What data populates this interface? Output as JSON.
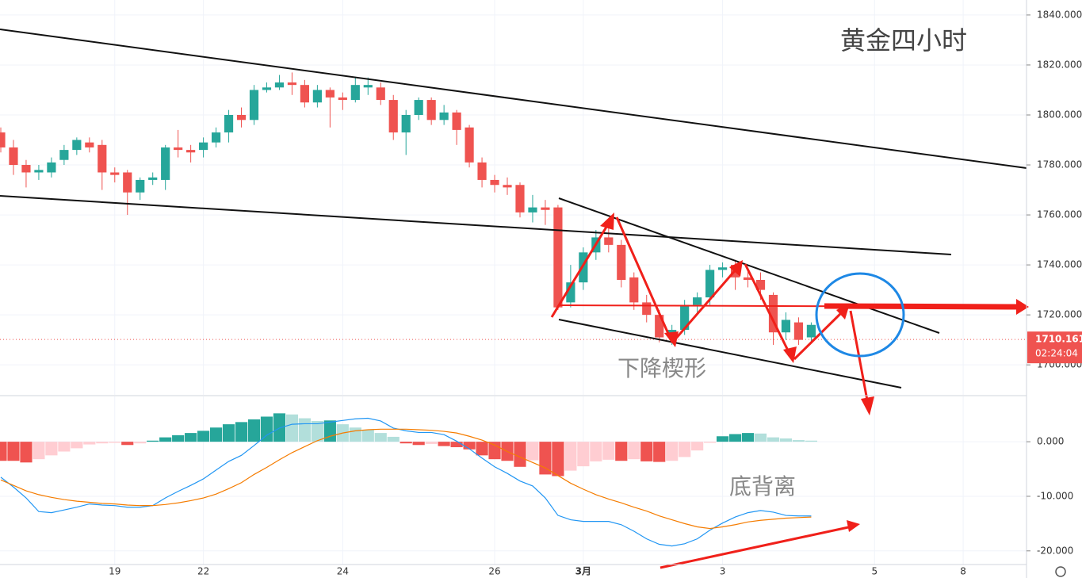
{
  "chart_data": [
    {
      "type": "candlestick",
      "title": "黄金四小时",
      "annotations": [
        "下降楔形"
      ],
      "x": [
        0,
        1,
        2,
        3,
        4,
        5,
        6,
        7,
        8,
        9,
        10,
        11,
        12,
        13,
        14,
        15,
        16,
        17,
        18,
        19,
        20,
        21,
        22,
        23,
        24,
        25,
        26,
        27,
        28,
        29,
        30,
        31,
        32,
        33,
        34,
        35,
        36,
        37,
        38,
        39,
        40,
        41,
        42,
        43,
        44,
        45,
        46,
        47,
        48,
        49,
        50,
        51,
        52,
        53,
        54,
        55,
        56,
        57,
        58,
        59,
        60,
        61,
        62,
        63,
        64
      ],
      "open": [
        1793,
        1787,
        1780,
        1777,
        1777,
        1782,
        1786,
        1789,
        1788,
        1777,
        1777,
        1769,
        1774,
        1774,
        1787,
        1786,
        1786,
        1789,
        1793,
        1800,
        1798,
        1810,
        1811,
        1813,
        1812,
        1805,
        1810,
        1807,
        1806,
        1811,
        1811,
        1806,
        1793,
        1800,
        1806,
        1798,
        1801,
        1795,
        1781,
        1774,
        1772,
        1772,
        1761,
        1763,
        1763,
        1725,
        1733,
        1745,
        1751,
        1748,
        1735,
        1725,
        1720,
        1711,
        1714,
        1724,
        1727,
        1738,
        1740,
        1735,
        1734,
        1728,
        1713,
        1717,
        1711
      ],
      "high": [
        1795,
        1790,
        1782,
        1780,
        1783,
        1788,
        1791,
        1791,
        1790,
        1779,
        1778,
        1775,
        1777,
        1788,
        1794,
        1788,
        1791,
        1795,
        1802,
        1803,
        1812,
        1813,
        1816,
        1817,
        1814,
        1812,
        1811,
        1809,
        1815,
        1815,
        1813,
        1808,
        1802,
        1807,
        1807,
        1804,
        1802,
        1796,
        1783,
        1776,
        1775,
        1773,
        1768,
        1766,
        1764,
        1740,
        1747,
        1754,
        1755,
        1750,
        1737,
        1728,
        1722,
        1716,
        1726,
        1729,
        1740,
        1741,
        1742,
        1738,
        1737,
        1729,
        1721,
        1719,
        1717
      ],
      "low": [
        1785,
        1776,
        1771,
        1774,
        1775,
        1780,
        1784,
        1785,
        1770,
        1773,
        1760,
        1766,
        1772,
        1770,
        1783,
        1781,
        1783,
        1787,
        1789,
        1795,
        1796,
        1809,
        1810,
        1808,
        1803,
        1803,
        1795,
        1802,
        1805,
        1808,
        1804,
        1790,
        1784,
        1798,
        1796,
        1796,
        1788,
        1779,
        1771,
        1769,
        1768,
        1759,
        1757,
        1756,
        1722,
        1723,
        1730,
        1742,
        1745,
        1731,
        1722,
        1717,
        1709,
        1708,
        1712,
        1721,
        1724,
        1735,
        1730,
        1731,
        1726,
        1708,
        1710,
        1708,
        1709
      ],
      "close": [
        1787,
        1780,
        1777,
        1778,
        1781,
        1786,
        1790,
        1787,
        1777,
        1776,
        1769,
        1774,
        1775,
        1787,
        1786,
        1785,
        1789,
        1793,
        1800,
        1798,
        1810,
        1811,
        1813,
        1812,
        1805,
        1810,
        1807,
        1806,
        1812,
        1812,
        1806,
        1793,
        1800,
        1806,
        1798,
        1801,
        1794,
        1781,
        1774,
        1772,
        1771,
        1761,
        1763,
        1762,
        1723,
        1733,
        1745,
        1751,
        1748,
        1734,
        1725,
        1720,
        1711,
        1714,
        1724,
        1727,
        1738,
        1739,
        1735,
        1734,
        1730,
        1713,
        1718,
        1710,
        1716
      ],
      "up_color": "#26a69a",
      "down_color": "#ef5350",
      "xlim": [
        0,
        81
      ],
      "xticks": [
        {
          "value": 9,
          "label": "19"
        },
        {
          "value": 16,
          "label": "22"
        },
        {
          "value": 27,
          "label": "24"
        },
        {
          "value": 39,
          "label": "26"
        },
        {
          "value": 46,
          "label": "3月"
        },
        {
          "value": 57,
          "label": "3"
        },
        {
          "value": 69,
          "label": "5"
        },
        {
          "value": 76,
          "label": "8"
        }
      ],
      "ylim": [
        1688,
        1846
      ],
      "yticks": [
        {
          "value": 1700,
          "label": "1700.000"
        },
        {
          "value": 1720,
          "label": "1720.000"
        },
        {
          "value": 1740,
          "label": "1740.000"
        },
        {
          "value": 1760,
          "label": "1760.000"
        },
        {
          "value": 1780,
          "label": "1780.000"
        },
        {
          "value": 1800,
          "label": "1800.000"
        },
        {
          "value": 1820,
          "label": "1820.000"
        },
        {
          "value": 1840,
          "label": "1840.000"
        }
      ],
      "last_price": 1710.161,
      "countdown": "02:24:04",
      "grid": true
    },
    {
      "type": "macd",
      "annotations": [
        "底背离"
      ],
      "histogram": [
        -3.5,
        -3.5,
        -3.8,
        -3.2,
        -2.5,
        -1.8,
        -1.2,
        -0.5,
        -0.3,
        -0.2,
        -0.6,
        -0.3,
        0.2,
        0.8,
        1.2,
        1.6,
        2.0,
        2.6,
        3.2,
        3.6,
        4.1,
        4.6,
        5.2,
        5.0,
        4.3,
        3.8,
        3.9,
        3.2,
        2.6,
        2.2,
        1.6,
        0.9,
        -0.3,
        -0.6,
        -0.4,
        -0.8,
        -1.0,
        -1.4,
        -2.5,
        -3.2,
        -3.5,
        -4.6,
        -3.4,
        -6.0,
        -6.3,
        -5.3,
        -4.5,
        -3.6,
        -3.3,
        -3.5,
        -3.2,
        -3.6,
        -3.7,
        -3.5,
        -2.8,
        -1.6,
        -0.2,
        1.0,
        1.4,
        1.6,
        1.5,
        0.8,
        0.6,
        0.3,
        0.2
      ],
      "histogram_colors": {
        "up_strong": "#26a69a",
        "up_weak": "#b2dfdb",
        "down_strong": "#ef5350",
        "down_weak": "#ffcdd2"
      },
      "series": [
        {
          "color": "#2196f3",
          "values": [
            -6.5,
            -8.3,
            -10.3,
            -12.8,
            -13.0,
            -12.5,
            -12.0,
            -11.4,
            -11.6,
            -11.7,
            -12.0,
            -12.0,
            -11.7,
            -10.3,
            -9.1,
            -8.0,
            -6.8,
            -5.2,
            -3.6,
            -2.5,
            -0.7,
            1.2,
            2.5,
            3.2,
            3.3,
            3.3,
            3.6,
            3.9,
            4.2,
            4.3,
            3.8,
            2.5,
            2.0,
            1.7,
            1.7,
            1.3,
            0.1,
            -1.3,
            -3.0,
            -4.6,
            -5.8,
            -7.2,
            -8.1,
            -10.3,
            -13.5,
            -14.3,
            -14.6,
            -14.6,
            -14.6,
            -15.2,
            -16.4,
            -17.8,
            -18.8,
            -19.1,
            -18.7,
            -17.8,
            -16.2,
            -14.9,
            -13.8,
            -13.0,
            -12.6,
            -12.9,
            -13.5,
            -13.6,
            -13.6
          ]
        },
        {
          "color": "#f57c00",
          "values": [
            -7.0,
            -8.0,
            -9.0,
            -9.7,
            -10.2,
            -10.6,
            -10.9,
            -11.1,
            -11.3,
            -11.4,
            -11.6,
            -11.7,
            -11.7,
            -11.5,
            -11.2,
            -10.8,
            -10.3,
            -9.6,
            -8.6,
            -7.5,
            -6.0,
            -4.7,
            -3.3,
            -2.0,
            -0.9,
            0.2,
            1.0,
            1.6,
            2.0,
            2.2,
            2.3,
            2.3,
            2.3,
            2.2,
            2.1,
            1.9,
            1.6,
            1.0,
            0.3,
            -0.6,
            -1.8,
            -2.8,
            -3.8,
            -4.8,
            -6.2,
            -7.6,
            -8.7,
            -9.7,
            -10.5,
            -11.2,
            -12.0,
            -12.7,
            -13.6,
            -14.3,
            -15.0,
            -15.6,
            -15.9,
            -15.6,
            -15.2,
            -14.7,
            -14.4,
            -14.2,
            -14.0,
            -13.9,
            -13.8
          ]
        }
      ],
      "ylim": [
        -22.5,
        8.3
      ],
      "yticks": [
        {
          "value": -20,
          "label": "-20.000"
        },
        {
          "value": -10,
          "label": "-10.000"
        },
        {
          "value": 0,
          "label": "0.000"
        }
      ],
      "grid": true
    }
  ]
}
